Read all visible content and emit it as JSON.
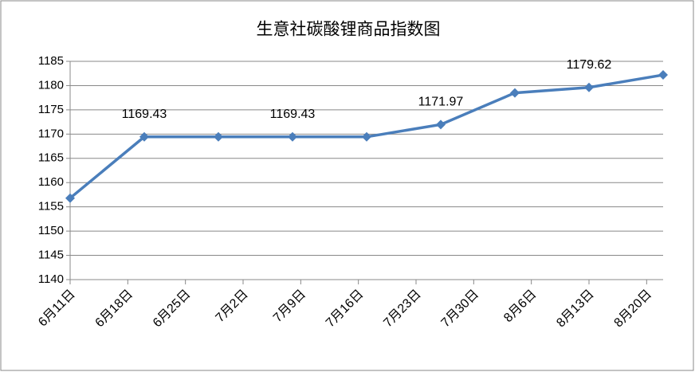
{
  "chart_data": {
    "type": "line",
    "title": "生意社碳酸锂商品指数图",
    "x": [
      0,
      9,
      18,
      27,
      36,
      45,
      54,
      63,
      72
    ],
    "xlim": [
      0,
      72
    ],
    "xticks": [
      {
        "value": 0,
        "label": "6月11日"
      },
      {
        "value": 7,
        "label": "6月18日"
      },
      {
        "value": 14,
        "label": "6月25日"
      },
      {
        "value": 21,
        "label": "7月2日"
      },
      {
        "value": 28,
        "label": "7月9日"
      },
      {
        "value": 35,
        "label": "7月16日"
      },
      {
        "value": 42,
        "label": "7月23日"
      },
      {
        "value": 49,
        "label": "7月30日"
      },
      {
        "value": 56,
        "label": "8月6日"
      },
      {
        "value": 63,
        "label": "8月13日"
      },
      {
        "value": 70,
        "label": "8月20日"
      }
    ],
    "series": [
      {
        "color": "#4a7ebb",
        "values": [
          1156.8,
          1169.43,
          1169.43,
          1169.43,
          1169.43,
          1171.97,
          1178.5,
          1179.62,
          1182.2
        ],
        "value_labels": [
          null,
          "1169.43",
          null,
          "1169.43",
          null,
          "1171.97",
          null,
          "1179.62",
          null
        ]
      }
    ],
    "ylim": [
      1140,
      1185
    ],
    "yticks": [
      1140,
      1145,
      1150,
      1155,
      1160,
      1165,
      1170,
      1175,
      1180,
      1185
    ],
    "grid": true
  }
}
